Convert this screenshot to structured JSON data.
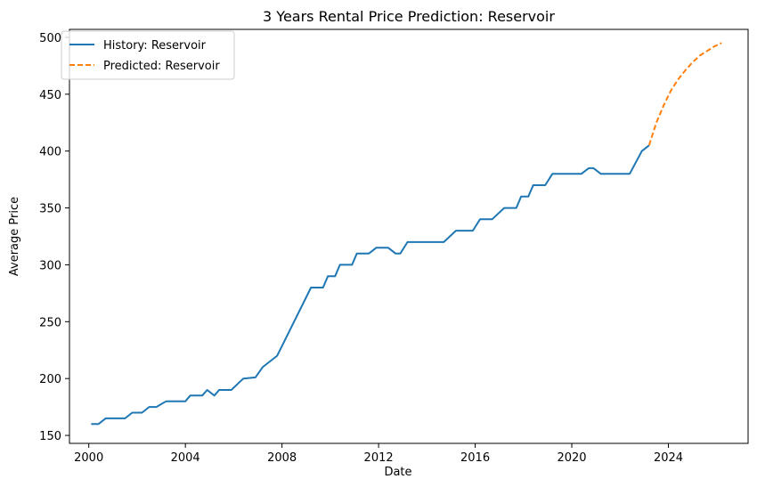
{
  "chart_data": {
    "type": "line",
    "title": "3 Years Rental Price Prediction: Reservoir",
    "xlabel": "Date",
    "ylabel": "Average Price",
    "xlim": [
      1999.2,
      2027.3
    ],
    "ylim": [
      143,
      507
    ],
    "x_ticks": [
      2000,
      2004,
      2008,
      2012,
      2016,
      2020,
      2024
    ],
    "x_tick_labels": [
      "2000",
      "2004",
      "2008",
      "2012",
      "2016",
      "2020",
      "2024"
    ],
    "y_ticks": [
      150,
      200,
      250,
      300,
      350,
      400,
      450,
      500
    ],
    "y_tick_labels": [
      "150",
      "200",
      "250",
      "300",
      "350",
      "400",
      "450",
      "500"
    ],
    "grid": false,
    "legend": {
      "position": "top-left"
    },
    "series": [
      {
        "name": "History: Reservoir",
        "color": "#1f77b4",
        "style": "solid",
        "points": [
          [
            2000.1,
            160
          ],
          [
            2000.4,
            160
          ],
          [
            2000.7,
            165
          ],
          [
            2001.0,
            165
          ],
          [
            2001.5,
            165
          ],
          [
            2001.8,
            170
          ],
          [
            2002.2,
            170
          ],
          [
            2002.5,
            175
          ],
          [
            2002.8,
            175
          ],
          [
            2003.2,
            180
          ],
          [
            2004.0,
            180
          ],
          [
            2003.2,
            180
          ],
          [
            2004.0,
            180
          ],
          [
            2004.2,
            185
          ],
          [
            2004.7,
            185
          ],
          [
            2004.9,
            190
          ],
          [
            2005.2,
            185
          ],
          [
            2005.4,
            190
          ],
          [
            2005.9,
            190
          ],
          [
            2006.4,
            200
          ],
          [
            2006.9,
            201
          ],
          [
            2007.2,
            210
          ],
          [
            2007.8,
            220
          ],
          [
            2009.2,
            280
          ],
          [
            2009.7,
            280
          ],
          [
            2009.9,
            290
          ],
          [
            2010.2,
            290
          ],
          [
            2010.4,
            300
          ],
          [
            2010.9,
            300
          ],
          [
            2011.1,
            310
          ],
          [
            2011.6,
            310
          ],
          [
            2011.9,
            315
          ],
          [
            2012.4,
            315
          ],
          [
            2012.7,
            310
          ],
          [
            2012.9,
            310
          ],
          [
            2013.2,
            320
          ],
          [
            2014.7,
            320
          ],
          [
            2015.2,
            330
          ],
          [
            2015.9,
            330
          ],
          [
            2016.2,
            340
          ],
          [
            2016.7,
            340
          ],
          [
            2017.2,
            350
          ],
          [
            2017.7,
            350
          ],
          [
            2017.9,
            360
          ],
          [
            2018.2,
            360
          ],
          [
            2018.4,
            370
          ],
          [
            2018.9,
            370
          ],
          [
            2019.2,
            380
          ],
          [
            2020.4,
            380
          ],
          [
            2020.7,
            385
          ],
          [
            2020.9,
            385
          ],
          [
            2021.2,
            380
          ],
          [
            2022.4,
            380
          ],
          [
            2022.9,
            400
          ],
          [
            2023.2,
            405
          ]
        ]
      },
      {
        "name": "Predicted: Reservoir",
        "color": "#ff7f0e",
        "style": "dashed",
        "points": [
          [
            2023.2,
            405
          ],
          [
            2023.5,
            425
          ],
          [
            2023.8,
            440
          ],
          [
            2024.1,
            453
          ],
          [
            2024.4,
            463
          ],
          [
            2024.7,
            471
          ],
          [
            2025.0,
            478
          ],
          [
            2025.3,
            484
          ],
          [
            2025.6,
            488
          ],
          [
            2025.9,
            492
          ],
          [
            2026.2,
            495
          ]
        ]
      }
    ]
  }
}
